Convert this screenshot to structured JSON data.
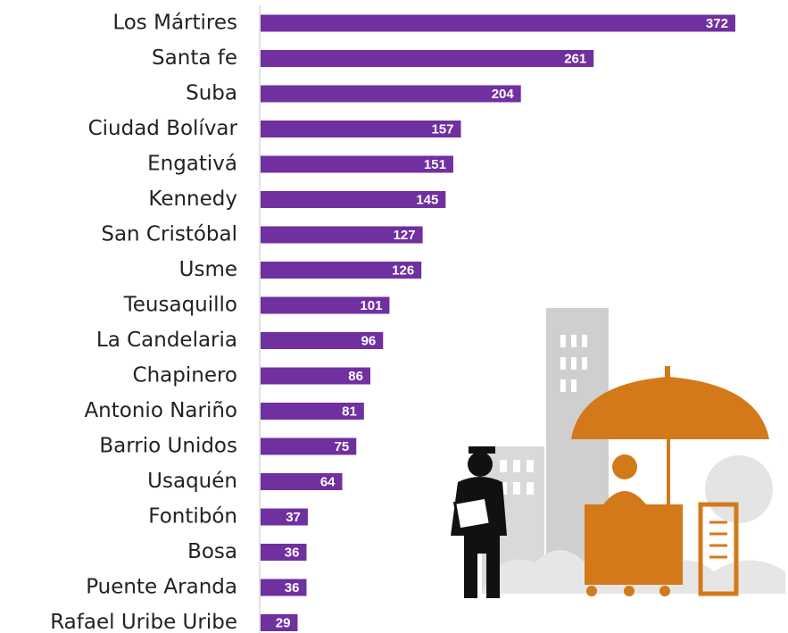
{
  "chart_data": {
    "type": "bar",
    "orientation": "horizontal",
    "color": "#7030a0",
    "categories": [
      "Los Mártires",
      "Santa fe",
      "Suba",
      "Ciudad Bolívar",
      "Engativá",
      "Kennedy",
      "San Cristóbal",
      "Usme",
      "Teusaquillo",
      "La Candelaria",
      "Chapinero",
      "Antonio Nariño",
      "Barrio Unidos",
      "Usaquén",
      "Fontibón",
      "Bosa",
      "Puente Aranda",
      "Rafael Uribe Uribe"
    ],
    "values": [
      372,
      261,
      204,
      157,
      151,
      145,
      127,
      126,
      101,
      96,
      86,
      81,
      75,
      64,
      37,
      36,
      36,
      29
    ]
  }
}
